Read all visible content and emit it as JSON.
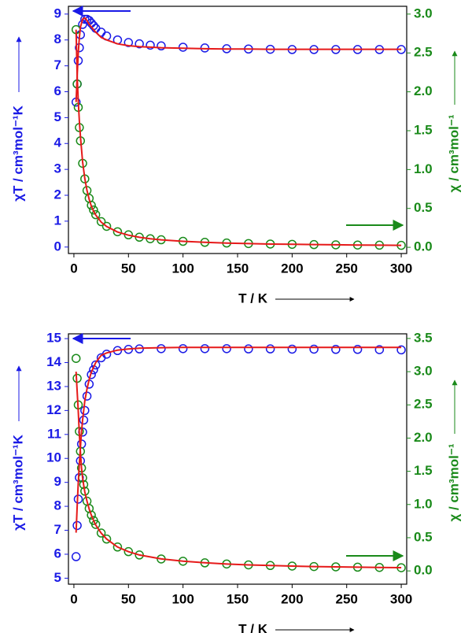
{
  "chart_data": [
    {
      "type": "scatter",
      "xlabel": "T / K",
      "ylabel": "χT / cm³mol⁻¹K",
      "y2label": "χ / cm³mol⁻¹",
      "x": [
        2,
        3,
        4,
        5,
        6,
        8,
        10,
        12,
        14,
        16,
        18,
        20,
        25,
        30,
        40,
        50,
        60,
        70,
        80,
        100,
        120,
        140,
        160,
        180,
        200,
        220,
        240,
        260,
        280,
        300
      ],
      "series": [
        {
          "color": "#1a1ae6",
          "style": "marker",
          "values": [
            5.6,
            6.3,
            7.2,
            7.7,
            8.2,
            8.6,
            8.8,
            8.8,
            8.75,
            8.65,
            8.55,
            8.45,
            8.3,
            8.15,
            8.0,
            7.9,
            7.85,
            7.8,
            7.77,
            7.72,
            7.69,
            7.66,
            7.65,
            7.64,
            7.63,
            7.63,
            7.63,
            7.63,
            7.63,
            7.63
          ]
        },
        {
          "color": "#e61a1a",
          "style": "line",
          "values": [
            5.6,
            6.6,
            7.5,
            8.1,
            8.5,
            8.8,
            8.85,
            8.75,
            8.6,
            8.5,
            8.4,
            8.3,
            8.1,
            8.0,
            7.85,
            7.78,
            7.74,
            7.72,
            7.7,
            7.68,
            7.66,
            7.65,
            7.65,
            7.64,
            7.64,
            7.64,
            7.64,
            7.64,
            7.64,
            7.64
          ]
        },
        {
          "color": "#1a8a1a",
          "style": "marker",
          "axis": "y2",
          "values": [
            2.8,
            2.1,
            1.8,
            1.54,
            1.37,
            1.08,
            0.88,
            0.73,
            0.63,
            0.54,
            0.48,
            0.42,
            0.33,
            0.27,
            0.2,
            0.16,
            0.13,
            0.11,
            0.097,
            0.077,
            0.064,
            0.055,
            0.048,
            0.042,
            0.038,
            0.035,
            0.032,
            0.029,
            0.027,
            0.025
          ]
        },
        {
          "color": "#e61a1a",
          "style": "line",
          "axis": "y2",
          "values": [
            2.8,
            2.2,
            1.88,
            1.62,
            1.42,
            1.1,
            0.885,
            0.73,
            0.615,
            0.53,
            0.467,
            0.415,
            0.324,
            0.267,
            0.196,
            0.156,
            0.129,
            0.11,
            0.096,
            0.077,
            0.064,
            0.055,
            0.048,
            0.042,
            0.038,
            0.035,
            0.032,
            0.029,
            0.027,
            0.025
          ]
        }
      ],
      "xlim": [
        -5,
        305
      ],
      "xticks": [
        0,
        50,
        100,
        150,
        200,
        250,
        300
      ],
      "ylim": [
        -0.25,
        9.3
      ],
      "yticks": [
        0,
        1,
        2,
        3,
        4,
        5,
        6,
        7,
        8,
        9
      ],
      "y2lim": [
        -0.08,
        3.1
      ],
      "y2ticks": [
        {
          "value": 0,
          "label": "0.0"
        },
        {
          "value": 0.5,
          "label": "0.5"
        },
        {
          "value": 1,
          "label": "1.0"
        },
        {
          "value": 1.5,
          "label": "1.5"
        },
        {
          "value": 2,
          "label": "2.0"
        },
        {
          "value": 2.5,
          "label": "2.5"
        },
        {
          "value": 3,
          "label": "3.0"
        }
      ]
    },
    {
      "type": "scatter",
      "xlabel": "T / K",
      "ylabel": "χT / cm³mol⁻¹K",
      "y2label": "χ / cm³mol⁻¹",
      "x": [
        2,
        3,
        4,
        5,
        6,
        7,
        8,
        9,
        10,
        12,
        14,
        16,
        18,
        20,
        25,
        30,
        40,
        50,
        60,
        80,
        100,
        120,
        140,
        160,
        180,
        200,
        220,
        240,
        260,
        280,
        300
      ],
      "series": [
        {
          "color": "#1a1ae6",
          "style": "marker",
          "values": [
            5.9,
            7.2,
            8.3,
            9.2,
            9.9,
            10.6,
            11.1,
            11.6,
            12.0,
            12.6,
            13.1,
            13.5,
            13.7,
            13.9,
            14.2,
            14.35,
            14.5,
            14.55,
            14.57,
            14.58,
            14.58,
            14.58,
            14.58,
            14.57,
            14.57,
            14.56,
            14.56,
            14.55,
            14.55,
            14.54,
            14.53
          ]
        },
        {
          "color": "#e61a1a",
          "style": "line",
          "values": [
            6.9,
            8.0,
            9.0,
            9.8,
            10.5,
            11.1,
            11.6,
            12.0,
            12.4,
            12.9,
            13.3,
            13.6,
            13.8,
            14.0,
            14.3,
            14.4,
            14.52,
            14.57,
            14.6,
            14.62,
            14.63,
            14.63,
            14.63,
            14.63,
            14.63,
            14.63,
            14.63,
            14.63,
            14.63,
            14.63,
            14.63
          ]
        },
        {
          "color": "#1a8a1a",
          "style": "marker",
          "axis": "y2",
          "values": [
            3.2,
            2.9,
            2.5,
            2.1,
            1.8,
            1.55,
            1.4,
            1.3,
            1.2,
            1.05,
            0.94,
            0.84,
            0.76,
            0.7,
            0.57,
            0.48,
            0.36,
            0.29,
            0.24,
            0.18,
            0.146,
            0.121,
            0.104,
            0.091,
            0.081,
            0.073,
            0.066,
            0.061,
            0.056,
            0.052,
            0.048
          ]
        },
        {
          "color": "#e61a1a",
          "style": "line",
          "axis": "y2",
          "values": [
            3.0,
            2.7,
            2.4,
            2.05,
            1.78,
            1.55,
            1.4,
            1.29,
            1.19,
            1.05,
            0.93,
            0.84,
            0.76,
            0.69,
            0.57,
            0.48,
            0.36,
            0.29,
            0.24,
            0.18,
            0.146,
            0.122,
            0.104,
            0.091,
            0.081,
            0.073,
            0.066,
            0.061,
            0.056,
            0.052,
            0.049
          ]
        }
      ],
      "xlim": [
        -5,
        305
      ],
      "xticks": [
        0,
        50,
        100,
        150,
        200,
        250,
        300
      ],
      "ylim": [
        4.75,
        15.2
      ],
      "yticks": [
        5,
        6,
        7,
        8,
        9,
        10,
        11,
        12,
        13,
        14,
        15
      ],
      "y2lim": [
        -0.2,
        3.57
      ],
      "y2ticks": [
        {
          "value": 0,
          "label": "0.0"
        },
        {
          "value": 0.5,
          "label": "0.5"
        },
        {
          "value": 1,
          "label": "1.0"
        },
        {
          "value": 1.5,
          "label": "1.5"
        },
        {
          "value": 2,
          "label": "2.0"
        },
        {
          "value": 2.5,
          "label": "2.5"
        },
        {
          "value": 3,
          "label": "3.0"
        },
        {
          "value": 3.5,
          "label": "3.5"
        }
      ]
    }
  ]
}
